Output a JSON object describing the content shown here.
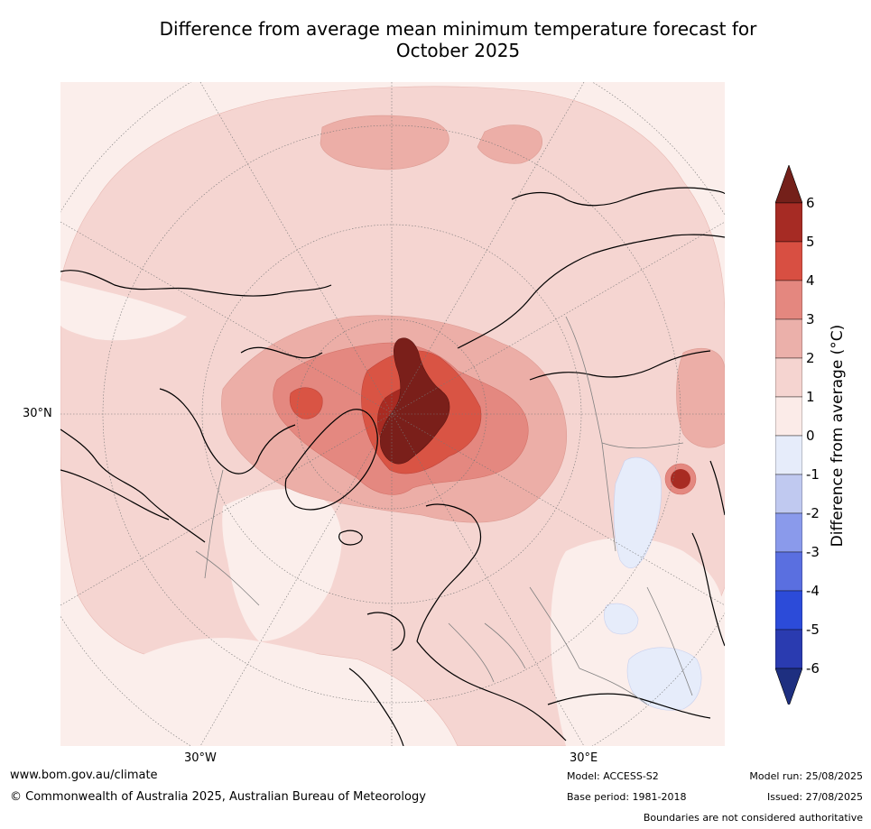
{
  "title_line1": "Difference from average mean minimum temperature forecast for",
  "title_line2": "October 2025",
  "map": {
    "lat_label": "30°N",
    "lon_labels": [
      "30°W",
      "30°E"
    ],
    "colors": {
      "ocean_base": "#fbeeeb",
      "light_warm": "#f5d5d1",
      "mid_warm": "#ecaea7",
      "warm": "#e48880",
      "hot": "#d95444",
      "very_hot": "#a82b22",
      "extreme": "#7a1f1a",
      "cool": "#e6ecfa",
      "coast": "#000000",
      "border": "#808080"
    }
  },
  "colorbar": {
    "label": "Difference from average (°C)",
    "ticks": [
      "6",
      "5",
      "4",
      "3",
      "2",
      "1",
      "0",
      "-1",
      "-2",
      "-3",
      "-4",
      "-5",
      "-6"
    ],
    "colors": [
      "#74201a",
      "#a62b24",
      "#d84f42",
      "#e4877f",
      "#ebb0aa",
      "#f5d4d0",
      "#fbebe8",
      "#e6ecfa",
      "#c0c9f0",
      "#8a9aeb",
      "#5a6fe0",
      "#2c4bd9",
      "#2a3bb0",
      "#1e2f80"
    ]
  },
  "footer": {
    "website": "www.bom.gov.au/climate",
    "copyright": "© Commonwealth of Australia 2025, Australian Bureau of Meteorology",
    "model": "Model: ACCESS-S2",
    "base_period": "Base period: 1981-2018",
    "model_run": "Model run: 25/08/2025",
    "issued": "Issued: 27/08/2025",
    "disclaimer": "Boundaries are not considered authoritative"
  }
}
